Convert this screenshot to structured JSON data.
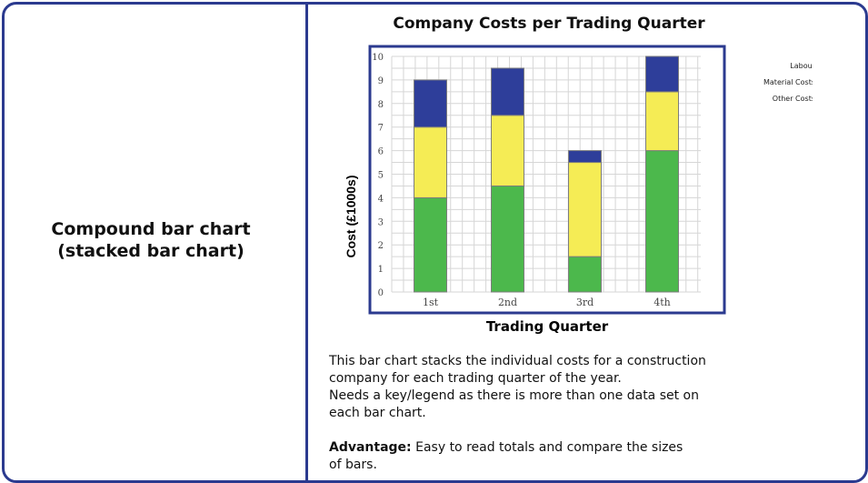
{
  "left_panel": {
    "title_line1": "Compound bar chart",
    "title_line2": "(stacked bar chart)"
  },
  "description": {
    "line1": "This bar chart stacks the individual costs for a construction",
    "line2": "company for each trading quarter of the year.",
    "line3": "Needs a key/legend as there is more than one data set on",
    "line4": "each bar chart.",
    "advantage_label": "Advantage:",
    "advantage_text1": "Easy to read totals and compare the sizes",
    "advantage_text2": "of bars."
  },
  "colors": {
    "frame": "#2b3a8f",
    "labour": "#4cb84c",
    "material": "#f5ec55",
    "other": "#2e3e9a",
    "grid": "#d6d6d6"
  },
  "chart_data": {
    "type": "bar",
    "stacked": true,
    "title": "Company Costs per Trading Quarter",
    "xlabel": "Trading Quarter",
    "ylabel": "Cost (£1000s)",
    "categories": [
      "1st",
      "2nd",
      "3rd",
      "4th"
    ],
    "ylim": [
      0,
      10
    ],
    "yticks": [
      "0",
      "1",
      "2",
      "3",
      "4",
      "5",
      "6",
      "7",
      "8",
      "9",
      "10"
    ],
    "grid": true,
    "legend_position": "top-right",
    "series": [
      {
        "name": "Labour",
        "values": [
          4,
          4.5,
          1.5,
          6
        ],
        "color": "#4cb84c"
      },
      {
        "name": "Material Costs",
        "values": [
          3,
          3,
          4,
          2.5
        ],
        "color": "#f5ec55"
      },
      {
        "name": "Other Costs",
        "values": [
          2,
          2,
          0.5,
          1.5
        ],
        "color": "#2e3e9a"
      }
    ]
  }
}
